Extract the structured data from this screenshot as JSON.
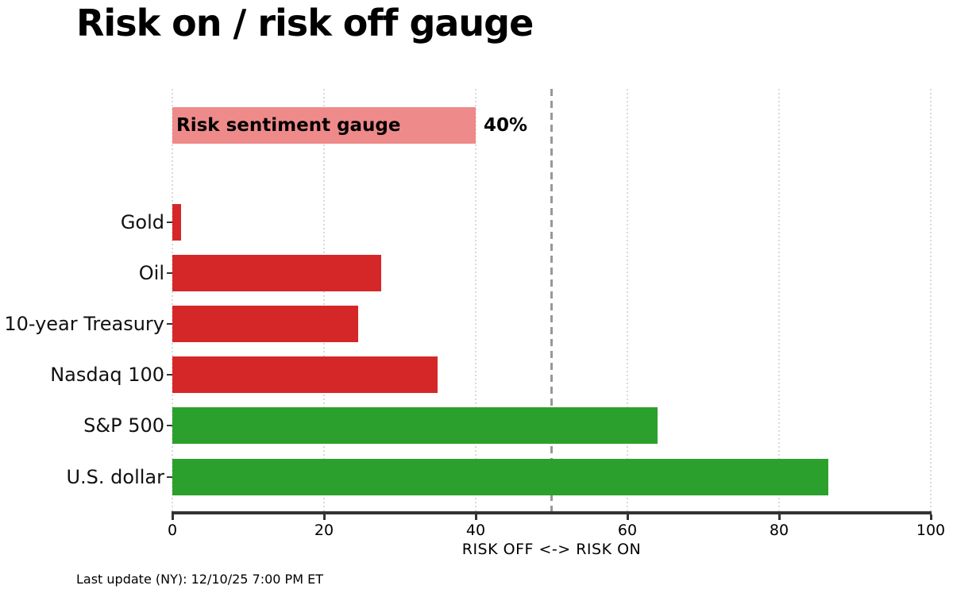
{
  "title": "Risk on / risk off gauge",
  "footer": "Last update (NY): 12/10/25 7:00 PM ET",
  "colors": {
    "risk_off_red": "#d62728",
    "risk_on_green": "#2ca02c",
    "gauge_pink": "#ef8a8a",
    "axis": "#333333",
    "gridline": "#d9d9d9",
    "reference_line": "#989898"
  },
  "chart_data": {
    "type": "bar",
    "orientation": "horizontal",
    "title": "Risk on / risk off gauge",
    "xlabel": "RISK OFF <-> RISK ON",
    "xlim": [
      0,
      100
    ],
    "xticks": [
      0,
      20,
      40,
      60,
      80,
      100
    ],
    "grid": "dotted vertical at each xtick",
    "reference_line_x": 50,
    "gauge": {
      "label": "Risk sentiment gauge",
      "value": 40,
      "value_label": "40%",
      "color": "#ef8a8a"
    },
    "bars": [
      {
        "label": "Gold",
        "value": 1.2,
        "color": "#d62728"
      },
      {
        "label": "Oil",
        "value": 27.5,
        "color": "#d62728"
      },
      {
        "label": "10-year Treasury",
        "value": 24.5,
        "color": "#d62728"
      },
      {
        "label": "Nasdaq 100",
        "value": 35,
        "color": "#d62728"
      },
      {
        "label": "S&P 500",
        "value": 64,
        "color": "#2ca02c"
      },
      {
        "label": "U.S. dollar",
        "value": 86.5,
        "color": "#2ca02c"
      }
    ]
  }
}
